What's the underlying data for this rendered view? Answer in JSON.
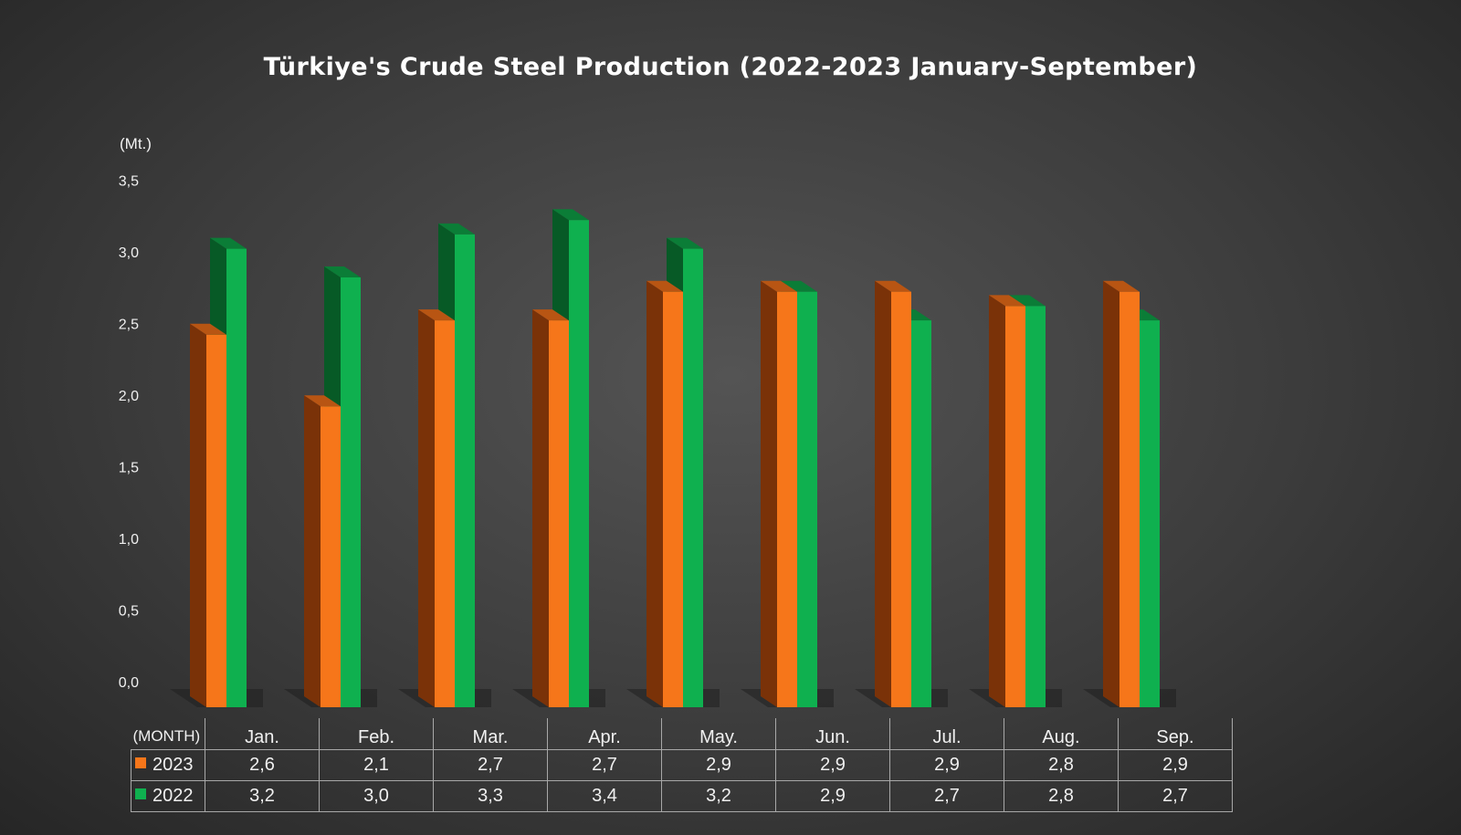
{
  "title": "Türkiye's Crude Steel Production (2022-2023 January-September)",
  "unit_label": "(Mt.)",
  "table_header_label": "(MONTH)",
  "chart_data": {
    "type": "bar",
    "title": "Türkiye's Crude Steel Production (2022-2023 January-September)",
    "ylabel": "(Mt.)",
    "ylim": [
      0,
      3.5
    ],
    "y_ticks": [
      "0,0",
      "0,5",
      "1,0",
      "1,5",
      "2,0",
      "2,5",
      "3,0",
      "3,5"
    ],
    "categories": [
      "Jan.",
      "Feb.",
      "Mar.",
      "Apr.",
      "May.",
      "Jun.",
      "Jul.",
      "Aug.",
      "Sep."
    ],
    "series": [
      {
        "name": "2023",
        "color": "#f6761a",
        "values": [
          2.6,
          2.1,
          2.7,
          2.7,
          2.9,
          2.9,
          2.9,
          2.8,
          2.9
        ],
        "labels": [
          "2,6",
          "2,1",
          "2,7",
          "2,7",
          "2,9",
          "2,9",
          "2,9",
          "2,8",
          "2,9"
        ]
      },
      {
        "name": "2022",
        "color": "#0fb04f",
        "values": [
          3.2,
          3.0,
          3.3,
          3.4,
          3.2,
          2.9,
          2.7,
          2.8,
          2.7
        ],
        "labels": [
          "3,2",
          "3,0",
          "3,3",
          "3,4",
          "3,2",
          "2,9",
          "2,7",
          "2,8",
          "2,7"
        ]
      }
    ],
    "grid": false,
    "legend": "data-table"
  }
}
